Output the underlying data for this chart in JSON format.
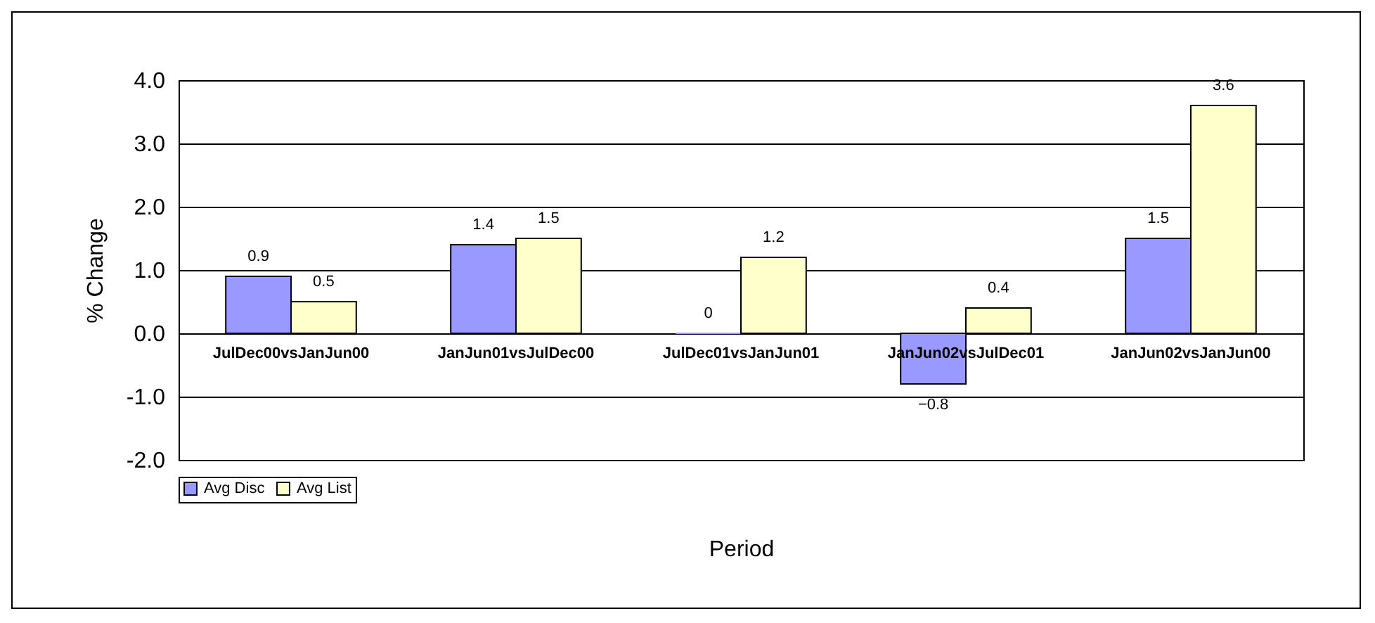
{
  "chart_data": {
    "type": "bar",
    "xlabel": "Period",
    "ylabel": "% Change",
    "categories": [
      "JulDec00vsJanJun00",
      "JanJun01vsJulDec00",
      "JulDec01vsJanJun01",
      "JanJun02vsJulDec01",
      "JanJun02vsJanJun00"
    ],
    "series": [
      {
        "name": "Avg Disc",
        "color": "#9999ff",
        "values": [
          0.9,
          1.4,
          0,
          -0.8,
          1.5
        ]
      },
      {
        "name": "Avg List",
        "color": "#ffffcc",
        "values": [
          0.5,
          1.5,
          1.2,
          0.4,
          3.6
        ]
      }
    ],
    "ylim": [
      -2,
      4
    ],
    "yticks": [
      {
        "value": -2,
        "label": "-2.0"
      },
      {
        "value": -1,
        "label": "-1.0"
      },
      {
        "value": 0,
        "label": "0.0"
      },
      {
        "value": 1,
        "label": "1.0"
      },
      {
        "value": 2,
        "label": "2.0"
      },
      {
        "value": 3,
        "label": "3.0"
      },
      {
        "value": 4,
        "label": "4.0"
      }
    ],
    "grid": "y",
    "legend": "bottom left",
    "data_labels": true
  }
}
